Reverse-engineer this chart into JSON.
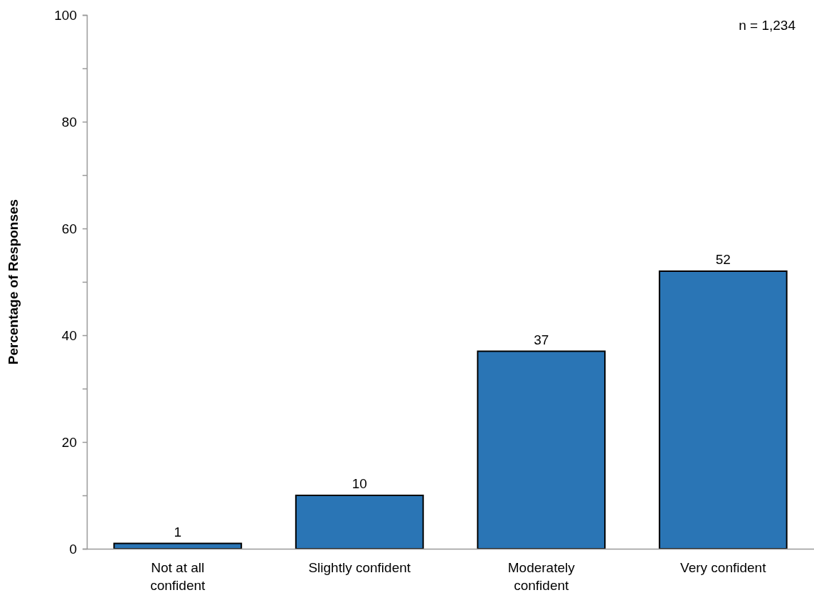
{
  "chart_data": {
    "type": "bar",
    "ylabel": "Percentage of Responses",
    "categories": [
      "Not at all\nconfident",
      "Slightly confident",
      "Moderately\nconfident",
      "Very confident"
    ],
    "values": [
      1,
      10,
      37,
      52
    ],
    "color": "#2a75b5",
    "data_labels": true,
    "ylim": [
      0,
      100
    ],
    "yticks": [
      0,
      {
        "value": 10,
        "label": null
      },
      20,
      {
        "value": 30,
        "label": null
      },
      40,
      {
        "value": 50,
        "label": null
      },
      60,
      {
        "value": 70,
        "label": null
      },
      80,
      {
        "value": 90,
        "label": null
      },
      100
    ],
    "annotations": [
      "n = 1,234"
    ]
  }
}
